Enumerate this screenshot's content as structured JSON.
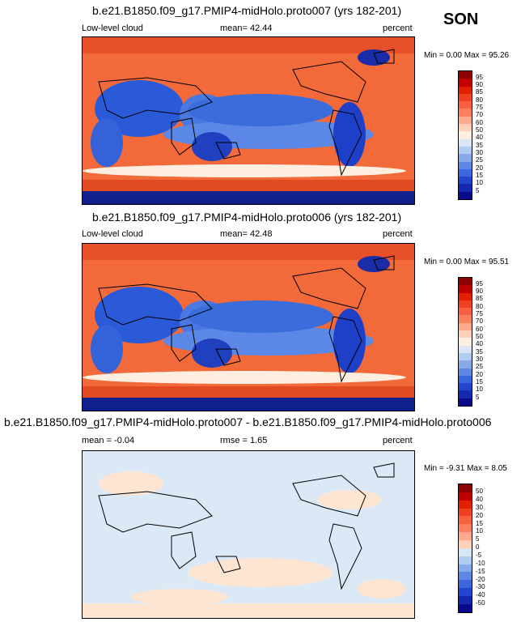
{
  "season": "SON",
  "panels": [
    {
      "title": "b.e21.B1850.f09_g17.PMIP4-midHolo.proto007 (yrs 182-201)",
      "left_label": "Low-level cloud",
      "center_label": "mean=  42.44",
      "right_label": "percent",
      "minmax": "Min =   0.00 Max =  95.26",
      "colorbar_labels": [
        "95",
        "90",
        "85",
        "80",
        "75",
        "70",
        "60",
        "50",
        "40",
        "35",
        "30",
        "25",
        "20",
        "15",
        "10",
        "5"
      ]
    },
    {
      "title": "b.e21.B1850.f09_g17.PMIP4-midHolo.proto006 (yrs 182-201)",
      "left_label": "Low-level cloud",
      "center_label": "mean=  42.48",
      "right_label": "percent",
      "minmax": "Min =   0.00 Max =  95.51",
      "colorbar_labels": [
        "95",
        "90",
        "85",
        "80",
        "75",
        "70",
        "60",
        "50",
        "40",
        "35",
        "30",
        "25",
        "20",
        "15",
        "10",
        "5"
      ]
    },
    {
      "title": "b.e21.B1850.f09_g17.PMIP4-midHolo.proto007 - b.e21.B1850.f09_g17.PMIP4-midHolo.proto006",
      "left_label": "mean =  -0.04",
      "center_label": "rmse =   1.65",
      "right_label": "percent",
      "minmax": "Min =  -9.31 Max =   8.05",
      "colorbar_labels": [
        "50",
        "40",
        "30",
        "20",
        "15",
        "10",
        "5",
        "0",
        "-5",
        "-10",
        "-15",
        "-20",
        "-30",
        "-40",
        "-50"
      ]
    }
  ],
  "colorbar_colors": [
    "#8b0000",
    "#c00000",
    "#e02000",
    "#f04020",
    "#f86040",
    "#fc8060",
    "#fda88a",
    "#fed0b8",
    "#fdeee0",
    "#d8e6f6",
    "#b0ccf0",
    "#88aaea",
    "#5c88e4",
    "#3c66dc",
    "#2046d0",
    "#1428b0",
    "#0a0a8c"
  ]
}
